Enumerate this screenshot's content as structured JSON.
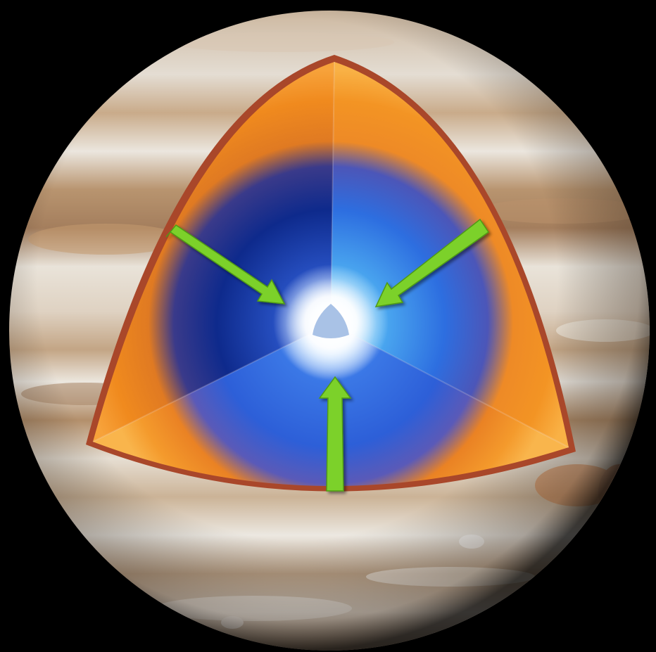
{
  "scene": {
    "subject": "planet-interior-cutaway",
    "background_color": "#000000",
    "planet": {
      "band_light": "#e9e4dc",
      "band_mid": "#d4c2a8",
      "band_tan": "#b89572",
      "band_brown": "#8f6e55",
      "limb_shadow": "#2a2018"
    },
    "cutaway": {
      "outline_color": "#a9472a",
      "outer_layer_color": "#f08a1e",
      "outer_layer_highlight": "#f9b145",
      "inner_deep_blue": "#0e2a8c",
      "inner_mid_blue": "#2d63e0",
      "inner_light_blue": "#55b2f2",
      "core_glow": "#ffffff",
      "core_center": "#a9c2e6"
    },
    "arrows": {
      "color": "#7cd12b",
      "shade": "#4f9a14",
      "count": 3,
      "direction": "pointing-inward-to-core",
      "icons": [
        "arrow-icon",
        "arrow-icon",
        "arrow-icon"
      ]
    }
  }
}
